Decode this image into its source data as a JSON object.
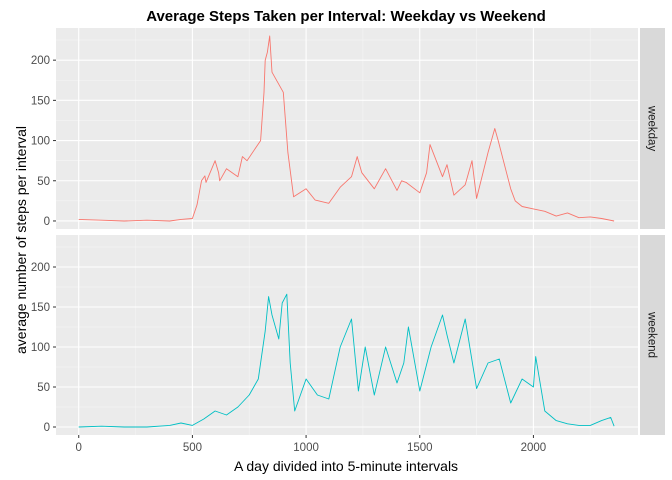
{
  "chart_data": {
    "type": "line",
    "title": "Average Steps Taken per Interval: Weekday vs Weekend",
    "xlabel": "A day divided into 5-minute intervals",
    "ylabel": "average number of steps per interval",
    "xlim": [
      -100,
      2460
    ],
    "ylim": [
      -10,
      240
    ],
    "xticks": [
      0,
      500,
      1000,
      1500,
      2000
    ],
    "yticks": [
      0,
      50,
      100,
      150,
      200
    ],
    "grid": true,
    "facet_layout": "vertical",
    "facet_strip_position": "right",
    "panels": [
      {
        "strip_label": "weekday",
        "color": "#F8766D",
        "x": [
          0,
          100,
          200,
          300,
          400,
          450,
          500,
          520,
          540,
          555,
          560,
          600,
          615,
          620,
          650,
          700,
          720,
          740,
          800,
          815,
          820,
          830,
          840,
          850,
          900,
          920,
          945,
          1000,
          1040,
          1100,
          1150,
          1200,
          1225,
          1245,
          1300,
          1350,
          1400,
          1420,
          1440,
          1500,
          1530,
          1545,
          1600,
          1620,
          1650,
          1700,
          1730,
          1750,
          1800,
          1830,
          1845,
          1900,
          1920,
          1950,
          2000,
          2050,
          2100,
          2150,
          2200,
          2250,
          2300,
          2355
        ],
        "y": [
          2,
          1,
          0,
          1,
          0,
          2,
          3,
          20,
          50,
          56,
          48,
          75,
          60,
          50,
          65,
          55,
          80,
          75,
          100,
          160,
          200,
          210,
          230,
          185,
          160,
          85,
          30,
          40,
          26,
          22,
          42,
          55,
          80,
          60,
          40,
          65,
          38,
          50,
          48,
          35,
          60,
          95,
          55,
          70,
          32,
          45,
          75,
          28,
          85,
          115,
          100,
          40,
          25,
          18,
          15,
          12,
          6,
          10,
          4,
          5,
          3,
          0
        ]
      },
      {
        "strip_label": "weekend",
        "color": "#00BFC4",
        "x": [
          0,
          100,
          200,
          300,
          400,
          450,
          500,
          550,
          600,
          650,
          700,
          750,
          790,
          820,
          835,
          850,
          880,
          895,
          915,
          930,
          950,
          1000,
          1050,
          1100,
          1150,
          1200,
          1230,
          1260,
          1300,
          1350,
          1400,
          1430,
          1450,
          1500,
          1550,
          1600,
          1620,
          1650,
          1700,
          1750,
          1800,
          1850,
          1900,
          1950,
          2000,
          2010,
          2050,
          2100,
          2150,
          2200,
          2250,
          2300,
          2340,
          2355
        ],
        "y": [
          0,
          1,
          0,
          0,
          2,
          5,
          2,
          10,
          20,
          15,
          25,
          40,
          60,
          120,
          163,
          140,
          110,
          155,
          166,
          80,
          20,
          60,
          40,
          35,
          100,
          135,
          45,
          100,
          40,
          100,
          55,
          80,
          125,
          45,
          100,
          140,
          115,
          80,
          135,
          48,
          80,
          85,
          30,
          60,
          50,
          88,
          20,
          8,
          4,
          2,
          2,
          8,
          12,
          1
        ]
      }
    ]
  }
}
